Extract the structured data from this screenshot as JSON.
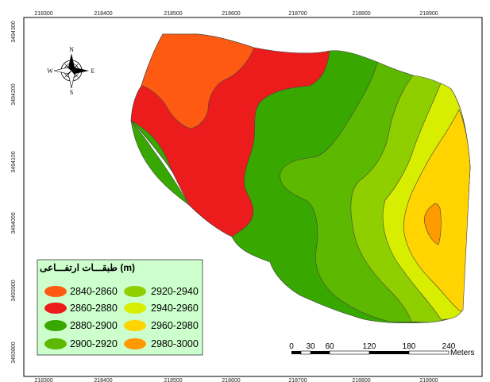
{
  "x_ticks": [
    "218300",
    "218400",
    "218500",
    "218600",
    "218700",
    "218800",
    "218900"
  ],
  "y_ticks": [
    "3494300",
    "3494200",
    "3494100",
    "3494000",
    "3493900",
    "3493800"
  ],
  "compass": {
    "north": "N",
    "south": "S",
    "east": "E",
    "west": "W"
  },
  "legend": {
    "title": "طبقـــات ارتفـــاعی (m)",
    "items": [
      {
        "label": "2840-2860",
        "color": "#ff5a12"
      },
      {
        "label": "2860-2880",
        "color": "#ed1c1c"
      },
      {
        "label": "2880-2900",
        "color": "#38a800"
      },
      {
        "label": "2900-2920",
        "color": "#5db800"
      },
      {
        "label": "2920-2940",
        "color": "#8fcf00"
      },
      {
        "label": "2940-2960",
        "color": "#d7ee00"
      },
      {
        "label": "2960-2980",
        "color": "#ffd400"
      },
      {
        "label": "2980-3000",
        "color": "#ff9a00"
      }
    ]
  },
  "scale_bar": {
    "ticks": [
      "0",
      "30",
      "60",
      "120",
      "180",
      "240"
    ],
    "units": "Meters"
  }
}
